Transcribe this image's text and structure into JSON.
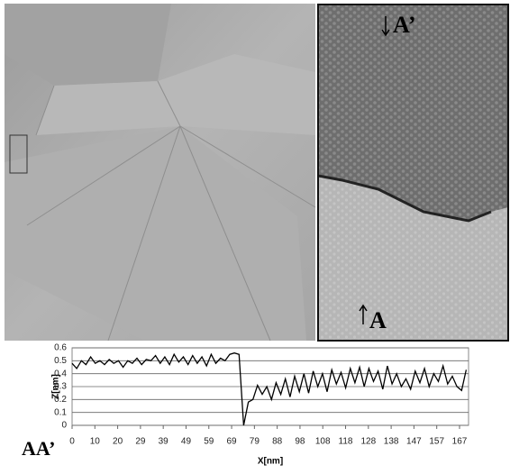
{
  "image_labels": {
    "top": "A’",
    "bottom": "A"
  },
  "chart_data": {
    "type": "line",
    "annotation": "AA’",
    "xlabel": "X[nm]",
    "ylabel": "Z[nm]",
    "color": "#000000",
    "grid": true,
    "x": [
      0,
      2,
      4,
      6,
      8,
      10,
      12,
      14,
      16,
      18,
      20,
      22,
      24,
      26,
      28,
      30,
      32,
      34,
      36,
      38,
      40,
      42,
      44,
      46,
      48,
      50,
      52,
      54,
      56,
      58,
      60,
      62,
      64,
      66,
      68,
      70,
      72,
      74,
      76,
      78,
      80,
      82,
      84,
      86,
      88,
      90,
      92,
      94,
      96,
      98,
      100,
      102,
      104,
      106,
      108,
      110,
      112,
      114,
      116,
      118,
      120,
      122,
      124,
      126,
      128,
      130,
      132,
      134,
      136,
      138,
      140,
      142,
      144,
      146,
      148,
      150,
      152,
      154,
      156,
      158,
      160,
      162,
      164,
      166,
      168,
      170
    ],
    "values": [
      0.48,
      0.44,
      0.5,
      0.47,
      0.53,
      0.48,
      0.5,
      0.47,
      0.51,
      0.48,
      0.5,
      0.45,
      0.5,
      0.48,
      0.52,
      0.47,
      0.51,
      0.5,
      0.54,
      0.48,
      0.53,
      0.47,
      0.55,
      0.49,
      0.53,
      0.47,
      0.54,
      0.48,
      0.53,
      0.46,
      0.55,
      0.48,
      0.52,
      0.5,
      0.55,
      0.56,
      0.55,
      0.0,
      0.18,
      0.2,
      0.31,
      0.24,
      0.3,
      0.2,
      0.33,
      0.24,
      0.36,
      0.22,
      0.38,
      0.26,
      0.4,
      0.25,
      0.42,
      0.3,
      0.4,
      0.26,
      0.43,
      0.32,
      0.41,
      0.29,
      0.44,
      0.33,
      0.45,
      0.3,
      0.44,
      0.34,
      0.42,
      0.28,
      0.46,
      0.32,
      0.4,
      0.3,
      0.36,
      0.28,
      0.42,
      0.33,
      0.44,
      0.3,
      0.4,
      0.34,
      0.46,
      0.32,
      0.38,
      0.3,
      0.27,
      0.43
    ],
    "xlim": [
      0,
      171
    ],
    "ylim": [
      0,
      0.6
    ],
    "xticks": [
      0,
      {
        "value": 9.83,
        "label": "10"
      },
      {
        "value": 19.66,
        "label": "20"
      },
      {
        "value": 29.49,
        "label": "29"
      },
      {
        "value": 39.32,
        "label": "39"
      },
      {
        "value": 49.15,
        "label": "49"
      },
      {
        "value": 58.98,
        "label": "59"
      },
      {
        "value": 68.81,
        "label": "69"
      },
      {
        "value": 78.64,
        "label": "79"
      },
      {
        "value": 88.47,
        "label": "88"
      },
      {
        "value": 98.3,
        "label": "98"
      },
      {
        "value": 108.13,
        "label": "108"
      },
      {
        "value": 117.96,
        "label": "118"
      },
      {
        "value": 127.79,
        "label": "128"
      },
      {
        "value": 137.62,
        "label": "138"
      },
      {
        "value": 147.45,
        "label": "147"
      },
      {
        "value": 157.28,
        "label": "157"
      },
      {
        "value": 167.11,
        "label": "167"
      }
    ],
    "yticks": [
      0,
      0.1,
      0.2,
      0.3,
      0.4,
      0.5,
      0.6
    ]
  }
}
